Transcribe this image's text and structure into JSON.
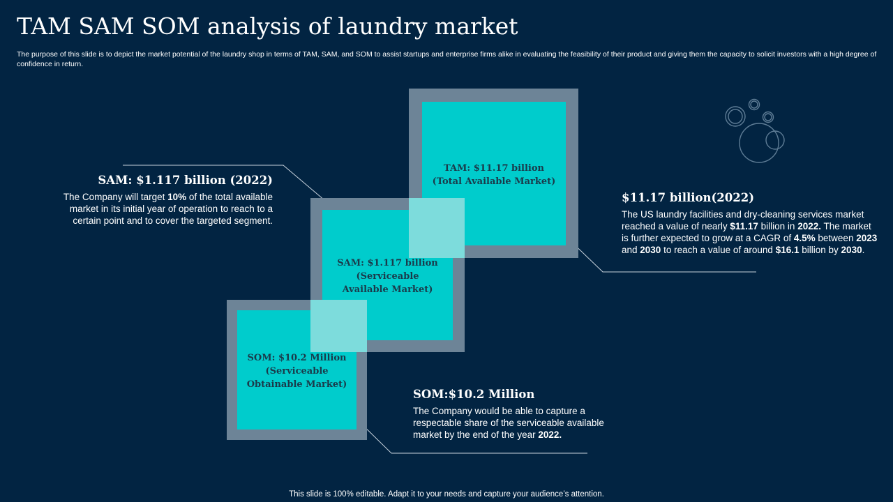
{
  "title": "TAM SAM SOM analysis of laundry market",
  "subtitle": "The purpose of this slide is to depict the market potential of the laundry shop in terms of TAM,  SAM,  and SOM  to assist startups and enterprise firms alike in evaluating the feasibility of their product and giving them the capacity to solicit investors with a high degree of confidence in return.",
  "tiles": {
    "tam": [
      "TAM: $11.17 billion",
      "(Total Available Market)"
    ],
    "sam": [
      "SAM: $1.117 billion",
      "(Serviceable",
      "Available Market)"
    ],
    "som": [
      "SOM: $10.2 Million",
      "(Serviceable",
      "Obtainable Market)"
    ]
  },
  "tam_desc": {
    "heading": "$11.17 billion(2022)",
    "p1": "The US laundry facilities and dry-cleaning services market reached a value of nearly ",
    "b1": "$11.17",
    "p2": " billion in ",
    "b2": "2022.",
    "p3": " The market is further expected to grow at a CAGR of ",
    "b3": "4.5%",
    "p4": "  between ",
    "b4": "2023",
    "p5": " and ",
    "b5": "2030",
    "p6": " to reach a value of around ",
    "b6": "$16.1",
    "p7": " billion by ",
    "b7": "2030",
    "p8": "."
  },
  "sam_desc": {
    "heading": "SAM: $1.117 billion (2022)",
    "p1": "The Company will target ",
    "b1": "10%",
    "p2": " of the total available market in its initial year of operation to reach to a certain point and to cover the targeted segment."
  },
  "som_desc": {
    "heading": "SOM:$10.2 Million",
    "p1": "The Company would be able to capture a respectable share of the serviceable available market by the end of the year ",
    "b1": "2022."
  },
  "footer": "This slide is 100% editable. Adapt it to your needs and capture your audience’s attention.",
  "icon": "bubbles-icon",
  "colors": {
    "background": "#022442",
    "tile": "#00cccc",
    "frame": "#6d8497"
  }
}
